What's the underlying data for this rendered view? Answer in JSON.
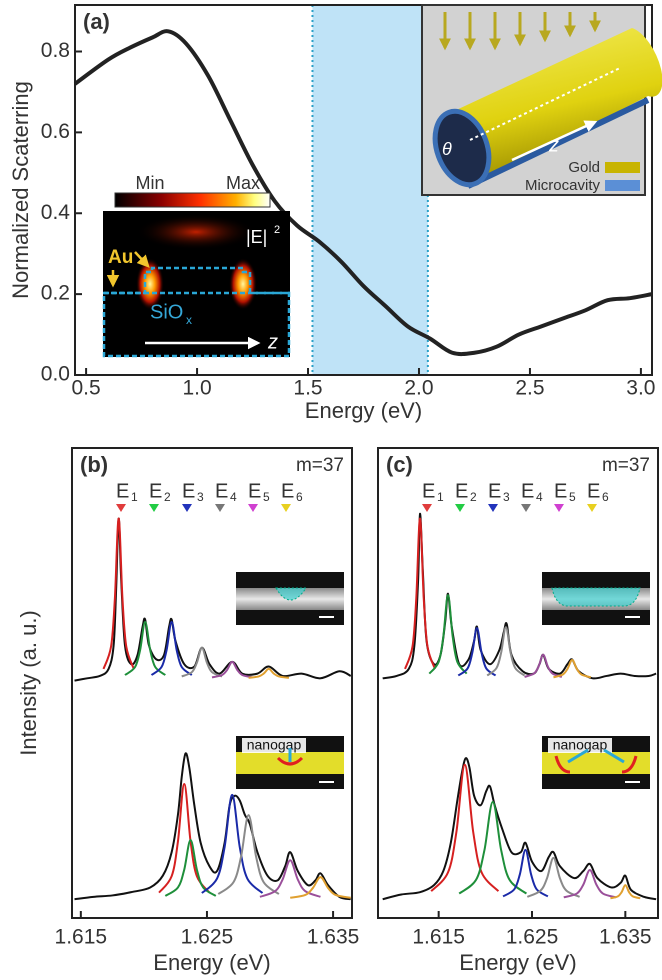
{
  "chart_data": [
    {
      "type": "line",
      "panel": "(a)",
      "xlabel": "Energy (eV)",
      "ylabel": "Normalized Scaterring",
      "xlim": [
        0.45,
        3.05
      ],
      "ylim": [
        0,
        0.915
      ],
      "xticks": [
        0.5,
        {
          "value": 1,
          "label": "1.0"
        },
        1.5,
        {
          "value": 2,
          "label": "2.0"
        },
        2.5,
        {
          "value": 3,
          "label": "3.0"
        }
      ],
      "yticks": [
        {
          "value": 0,
          "label": "0.0"
        },
        0.2,
        0.4,
        0.6,
        0.8
      ],
      "highlight": [
        1.52,
        2.04
      ],
      "highlight_color": "#bfe3f7",
      "series": [
        {
          "color": "#222222",
          "x": [
            0.45,
            0.6,
            0.7,
            0.8,
            0.87,
            0.95,
            1.05,
            1.15,
            1.25,
            1.35,
            1.45,
            1.55,
            1.65,
            1.75,
            1.85,
            1.95,
            2.05,
            2.15,
            2.25,
            2.35,
            2.45,
            2.55,
            2.65,
            2.75,
            2.85,
            2.95,
            3.05
          ],
          "values": [
            0.72,
            0.78,
            0.81,
            0.835,
            0.85,
            0.82,
            0.74,
            0.63,
            0.52,
            0.43,
            0.37,
            0.33,
            0.28,
            0.22,
            0.17,
            0.12,
            0.09,
            0.055,
            0.055,
            0.07,
            0.1,
            0.12,
            0.14,
            0.16,
            0.185,
            0.19,
            0.2
          ]
        }
      ],
      "insets": {
        "colormap": {
          "min": "Min",
          "max": "Max",
          "field": "|E|",
          "field_power": "2",
          "metal": "Au",
          "substrate": "SiO",
          "substrate_sub": "x",
          "axis": "z"
        },
        "schematic": {
          "angle": "θ",
          "axis": "z",
          "legend": [
            {
              "name": "Gold",
              "color": "#c8b400"
            },
            {
              "name": "Microcavity",
              "color": "#5b8fd6"
            }
          ]
        }
      }
    },
    {
      "type": "line",
      "panel": "(b)",
      "annotation": "m=37",
      "ylabel": "Intensity (a. u.)",
      "xlabel": "Energy (eV)",
      "xlim": [
        1.6143,
        1.6365
      ],
      "ylim": [
        0,
        100
      ],
      "xticks": [
        1.615,
        1.625,
        1.635
      ],
      "inset_label": "nanogap",
      "peak_labels": [
        {
          "text": "E",
          "sub": "1",
          "color": "#e03c3c"
        },
        {
          "text": "E",
          "sub": "2",
          "color": "#22cc44"
        },
        {
          "text": "E",
          "sub": "3",
          "color": "#2233bb"
        },
        {
          "text": "E",
          "sub": "4",
          "color": "#777777"
        },
        {
          "text": "E",
          "sub": "5",
          "color": "#d040d0"
        },
        {
          "text": "E",
          "sub": "6",
          "color": "#e8d020"
        }
      ],
      "series": [
        {
          "color": "#111111",
          "x": [
            1.6145,
            1.6155,
            1.6165,
            1.6172,
            1.6176,
            1.6178,
            1.618,
            1.6182,
            1.6185,
            1.619,
            1.6195,
            1.6199,
            1.6201,
            1.6204,
            1.621,
            1.6216,
            1.622,
            1.6222,
            1.6225,
            1.6232,
            1.624,
            1.6246,
            1.6252,
            1.626,
            1.627,
            1.6278,
            1.629,
            1.6299,
            1.631,
            1.6325,
            1.634,
            1.6355,
            1.6364
          ],
          "values": [
            50.5,
            51,
            51.5,
            53,
            58,
            70,
            85,
            72,
            58,
            54,
            56,
            62,
            63.5,
            58,
            55,
            56,
            62,
            63.5,
            59,
            54,
            53.5,
            57.5,
            54,
            52,
            54.5,
            52,
            52,
            53.5,
            51.5,
            52,
            51,
            52.5,
            51.5
          ]
        },
        {
          "color": "#d62020",
          "x": [
            1.6168,
            1.6174,
            1.6177,
            1.618,
            1.6183,
            1.6186,
            1.6192
          ],
          "values": [
            53,
            57.8,
            68,
            85,
            68,
            57.8,
            53
          ]
        },
        {
          "color": "#1e8f3a",
          "x": [
            1.6185,
            1.6193,
            1.6197,
            1.6201,
            1.6205,
            1.6209,
            1.6217
          ],
          "values": [
            51.7,
            53.4,
            57,
            63,
            57,
            53.4,
            51.7
          ]
        },
        {
          "color": "#1a2aa8",
          "x": [
            1.6206,
            1.6214,
            1.6218,
            1.6222,
            1.6226,
            1.623,
            1.6238
          ],
          "values": [
            51.7,
            53.4,
            57,
            63,
            57,
            53.4,
            51.7
          ]
        },
        {
          "color": "#8a8a8a",
          "x": [
            1.623,
            1.6238,
            1.6242,
            1.6246,
            1.625,
            1.6254,
            1.6262
          ],
          "values": [
            51.4,
            52.3,
            54.3,
            57.5,
            54.3,
            52.3,
            51.4
          ]
        },
        {
          "color": "#9a4f9a",
          "x": [
            1.6254,
            1.6262,
            1.6266,
            1.627,
            1.6274,
            1.6278,
            1.6286
          ],
          "values": [
            51.2,
            51.7,
            52.8,
            54.5,
            52.8,
            51.7,
            51.2
          ]
        },
        {
          "color": "#e0a030",
          "x": [
            1.6283,
            1.6291,
            1.6295,
            1.6299,
            1.6303,
            1.6307,
            1.6315
          ],
          "values": [
            51.1,
            51.4,
            52,
            53,
            52,
            51.4,
            51.1
          ]
        },
        {
          "color": "#111111",
          "x": [
            1.6145,
            1.616,
            1.6175,
            1.619,
            1.6205,
            1.6215,
            1.6222,
            1.6227,
            1.623,
            1.6233,
            1.6236,
            1.624,
            1.6245,
            1.6252,
            1.6258,
            1.6264,
            1.6268,
            1.6272,
            1.6276,
            1.628,
            1.6284,
            1.629,
            1.6298,
            1.6306,
            1.6312,
            1.6316,
            1.6322,
            1.633,
            1.6336,
            1.634,
            1.6346,
            1.6355,
            1.6364
          ],
          "values": [
            4,
            4.5,
            4.8,
            5.5,
            6.5,
            9,
            14,
            22,
            30,
            35,
            32,
            24,
            16,
            11,
            10,
            16,
            24,
            26,
            25,
            22,
            20,
            14,
            9,
            8,
            11,
            14,
            10,
            7,
            8,
            9.5,
            7,
            4.5,
            4
          ]
        },
        {
          "color": "#d62020",
          "x": [
            1.6212,
            1.6222,
            1.6227,
            1.6232,
            1.6237,
            1.6242,
            1.6252
          ],
          "values": [
            5.4,
            8.9,
            16.3,
            28.5,
            16.3,
            8.9,
            5.4
          ]
        },
        {
          "color": "#1e8f3a",
          "x": [
            1.6217,
            1.6227,
            1.6232,
            1.6237,
            1.6242,
            1.6247,
            1.6257
          ],
          "values": [
            4.7,
            6.5,
            10.3,
            16.6,
            10.3,
            6.5,
            4.7
          ]
        },
        {
          "color": "#1a2aa8",
          "x": [
            1.6246,
            1.6258,
            1.6264,
            1.627,
            1.6276,
            1.6282,
            1.6294
          ],
          "values": [
            5.3,
            8.4,
            15.1,
            26.2,
            15.1,
            8.4,
            5.3
          ]
        },
        {
          "color": "#8a8a8a",
          "x": [
            1.6259,
            1.6271,
            1.6277,
            1.6283,
            1.6289,
            1.6295,
            1.6307
          ],
          "values": [
            5.1,
            7.6,
            13,
            21.9,
            13,
            7.6,
            5.1
          ]
        },
        {
          "color": "#9a4f9a",
          "x": [
            1.6292,
            1.6304,
            1.631,
            1.6316,
            1.6322,
            1.6328,
            1.634
          ],
          "values": [
            4.5,
            5.7,
            8.2,
            12.3,
            8.2,
            5.7,
            4.5
          ]
        },
        {
          "color": "#e0a030",
          "x": [
            1.6316,
            1.6328,
            1.6334,
            1.634,
            1.6346,
            1.6352,
            1.6364
          ],
          "values": [
            4.3,
            4.9,
            6.4,
            8.7,
            6.4,
            4.9,
            4.3
          ]
        }
      ]
    },
    {
      "type": "line",
      "panel": "(c)",
      "annotation": "m=37",
      "xlabel": "Energy (eV)",
      "xlim": [
        1.6085,
        1.6385
      ],
      "ylim": [
        0,
        100
      ],
      "xticks": [
        1.615,
        1.625,
        1.635
      ],
      "inset_label": "nanogap",
      "peak_labels": [
        {
          "text": "E",
          "sub": "1",
          "color": "#e03c3c"
        },
        {
          "text": "E",
          "sub": "2",
          "color": "#22cc44"
        },
        {
          "text": "E",
          "sub": "3",
          "color": "#2233bb"
        },
        {
          "text": "E",
          "sub": "4",
          "color": "#777777"
        },
        {
          "text": "E",
          "sub": "5",
          "color": "#d040d0"
        },
        {
          "text": "E",
          "sub": "6",
          "color": "#e8d020"
        }
      ],
      "series": [
        {
          "color": "#111111",
          "x": [
            1.609,
            1.6105,
            1.6118,
            1.6124,
            1.6128,
            1.613,
            1.6133,
            1.6137,
            1.6145,
            1.6152,
            1.6157,
            1.616,
            1.6164,
            1.6172,
            1.6182,
            1.6188,
            1.6191,
            1.6195,
            1.6205,
            1.6215,
            1.622,
            1.6223,
            1.6228,
            1.624,
            1.6252,
            1.6258,
            1.6262,
            1.6268,
            1.628,
            1.6288,
            1.6293,
            1.63,
            1.6315,
            1.633,
            1.6345,
            1.636,
            1.6375,
            1.6383
          ],
          "values": [
            51,
            51.5,
            53,
            58,
            72,
            86,
            74,
            59,
            54,
            56,
            63,
            69,
            62,
            54,
            55,
            59,
            62,
            57,
            54,
            57,
            61,
            62.5,
            56,
            52.5,
            52,
            54,
            56,
            53,
            52,
            54,
            55,
            52.5,
            51,
            51.5,
            52,
            51.5,
            51.5,
            52
          ]
        },
        {
          "color": "#d62020",
          "x": [
            1.6114,
            1.6122,
            1.6126,
            1.613,
            1.6134,
            1.6138,
            1.6146
          ],
          "values": [
            53,
            57.8,
            68,
            85,
            68,
            57.8,
            53
          ]
        },
        {
          "color": "#1e8f3a",
          "x": [
            1.614,
            1.615,
            1.6155,
            1.616,
            1.6165,
            1.617,
            1.618
          ],
          "values": [
            52,
            54.5,
            59.9,
            68.7,
            59.9,
            54.5,
            52
          ]
        },
        {
          "color": "#1a2aa8",
          "x": [
            1.6171,
            1.6181,
            1.6186,
            1.6191,
            1.6196,
            1.6201,
            1.6211
          ],
          "values": [
            51.6,
            53.1,
            56.4,
            61.7,
            56.4,
            53.1,
            51.6
          ]
        },
        {
          "color": "#8a8a8a",
          "x": [
            1.6202,
            1.6212,
            1.6217,
            1.6222,
            1.6227,
            1.6232,
            1.6242
          ],
          "values": [
            51.6,
            53.2,
            56.5,
            61.9,
            56.5,
            53.2,
            51.6
          ]
        },
        {
          "color": "#9a4f9a",
          "x": [
            1.6242,
            1.6252,
            1.6257,
            1.6262,
            1.6267,
            1.6272,
            1.6282
          ],
          "values": [
            51.3,
            52,
            53.5,
            56,
            53.5,
            52,
            51.3
          ]
        },
        {
          "color": "#e0a030",
          "x": [
            1.6273,
            1.6283,
            1.6288,
            1.6293,
            1.6298,
            1.6303,
            1.6313
          ],
          "values": [
            51.2,
            51.8,
            53,
            54.9,
            53,
            51.8,
            51.2
          ]
        },
        {
          "color": "#111111",
          "x": [
            1.609,
            1.611,
            1.613,
            1.6145,
            1.6155,
            1.6163,
            1.617,
            1.6175,
            1.6179,
            1.6183,
            1.6188,
            1.6195,
            1.6201,
            1.6205,
            1.621,
            1.6218,
            1.6228,
            1.6238,
            1.6243,
            1.625,
            1.626,
            1.6268,
            1.6273,
            1.628,
            1.6295,
            1.6305,
            1.6312,
            1.632,
            1.6335,
            1.6345,
            1.635,
            1.6356,
            1.637,
            1.6383
          ],
          "values": [
            4,
            5,
            5.5,
            7,
            10,
            16,
            25,
            31,
            34,
            32,
            26,
            24,
            27,
            28,
            24,
            19,
            14,
            14,
            16,
            12,
            10,
            13,
            14,
            11,
            8.5,
            10,
            11.5,
            8.5,
            6.5,
            7.5,
            9,
            6,
            4.5,
            4
          ]
        },
        {
          "color": "#d62020",
          "x": [
            1.6142,
            1.616,
            1.6169,
            1.6178,
            1.6187,
            1.6196,
            1.6214
          ],
          "values": [
            5.7,
            9.7,
            18.3,
            32.6,
            18.3,
            9.7,
            5.7
          ]
        },
        {
          "color": "#1e8f3a",
          "x": [
            1.6172,
            1.619,
            1.6199,
            1.6208,
            1.6217,
            1.6226,
            1.6244
          ],
          "values": [
            5.2,
            8.1,
            14.4,
            24.7,
            14.4,
            8.1,
            5.2
          ]
        },
        {
          "color": "#1a2aa8",
          "x": [
            1.6219,
            1.6231,
            1.6237,
            1.6243,
            1.6249,
            1.6255,
            1.6267
          ],
          "values": [
            4.6,
            6.1,
            9.3,
            14.5,
            9.3,
            6.1,
            4.6
          ]
        },
        {
          "color": "#8a8a8a",
          "x": [
            1.6245,
            1.6259,
            1.6266,
            1.6273,
            1.628,
            1.6287,
            1.6301
          ],
          "values": [
            4.5,
            5.8,
            8.4,
            12.8,
            8.4,
            5.8,
            4.5
          ]
        },
        {
          "color": "#9a4f9a",
          "x": [
            1.6284,
            1.6298,
            1.6305,
            1.6312,
            1.6319,
            1.6326,
            1.634
          ],
          "values": [
            4.4,
            5.2,
            7.1,
            10.2,
            7.1,
            5.2,
            4.4
          ]
        },
        {
          "color": "#e0a030",
          "x": [
            1.6334,
            1.6342,
            1.6346,
            1.635,
            1.6354,
            1.6358,
            1.6366
          ],
          "values": [
            4.2,
            4.6,
            5.5,
            7,
            5.5,
            4.6,
            4.2
          ]
        }
      ]
    }
  ]
}
